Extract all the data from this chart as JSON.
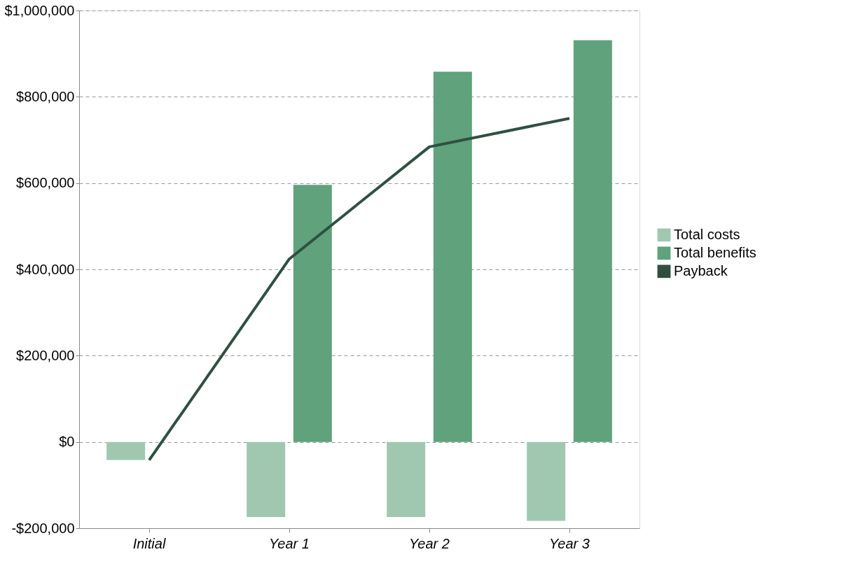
{
  "chart_data": {
    "type": "bar",
    "categories": [
      "Initial",
      "Year 1",
      "Year 2",
      "Year 3"
    ],
    "series": [
      {
        "name": "Total costs",
        "color": "#a0c8b0",
        "values": [
          -42000,
          -174000,
          -174000,
          -183000
        ]
      },
      {
        "name": "Total benefits",
        "color": "#5fa27c",
        "values": [
          null,
          596000,
          858000,
          931000
        ]
      },
      {
        "name": "Payback",
        "type": "line",
        "color": "#2f5040",
        "values": [
          -42000,
          424000,
          684000,
          750000
        ]
      }
    ],
    "ylim": [
      -200000,
      1000000
    ],
    "yticks": [
      {
        "value": -200000,
        "label": "-$200,000"
      },
      {
        "value": 0,
        "label": "$0"
      },
      {
        "value": 200000,
        "label": "$200,000"
      },
      {
        "value": 400000,
        "label": "$400,000"
      },
      {
        "value": 600000,
        "label": "$600,000"
      },
      {
        "value": 800000,
        "label": "$800,000"
      },
      {
        "value": 1000000,
        "label": "$1,000,000"
      }
    ],
    "grid": "y",
    "legend": "right",
    "line_style": "solid"
  }
}
